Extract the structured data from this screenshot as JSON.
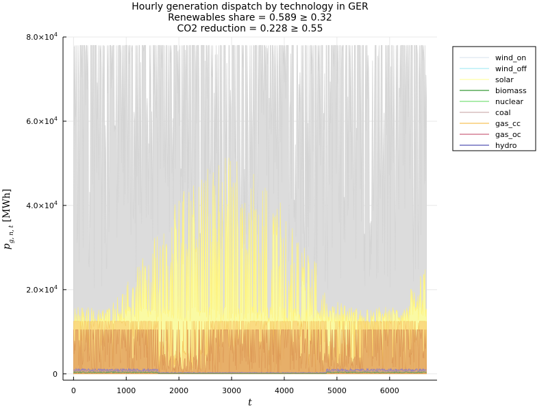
{
  "chart_data": {
    "type": "area",
    "title_lines": [
      "Hourly generation dispatch by technology in GER",
      "Renewables share = 0.589 ≥ 0.32",
      "CO2 reduction = 0.228 ≥ 0.55"
    ],
    "xlabel": "t",
    "ylabel": "p_{g,n,t} [MWh]",
    "xlim": [
      -200,
      6900
    ],
    "ylim": [
      -1500,
      80000
    ],
    "x_ticks": [
      0,
      1000,
      2000,
      3000,
      4000,
      5000,
      6000
    ],
    "x_tick_labels": [
      "0",
      "1000",
      "2000",
      "3000",
      "4000",
      "5000",
      "6000"
    ],
    "y_ticks": [
      0,
      20000,
      40000,
      60000,
      80000
    ],
    "y_tick_labels": [
      {
        "base": "0",
        "exp": ""
      },
      {
        "base": "2.0×10",
        "exp": "4"
      },
      {
        "base": "4.0×10",
        "exp": "4"
      },
      {
        "base": "6.0×10",
        "exp": "4"
      },
      {
        "base": "8.0×10",
        "exp": "4"
      }
    ],
    "grid": true,
    "legend_position": "top-right outside",
    "series": [
      {
        "name": "wind_on",
        "color": "#d9e4ef",
        "approx_range": [
          0,
          78000
        ]
      },
      {
        "name": "wind_off",
        "color": "#9fe9f3",
        "approx_range": [
          0,
          78000
        ]
      },
      {
        "name": "solar",
        "color": "#ffff99",
        "approx_range": [
          0,
          54000
        ]
      },
      {
        "name": "biomass",
        "color": "#1a8a1a",
        "approx_range": [
          0,
          1200
        ]
      },
      {
        "name": "nuclear",
        "color": "#66dd66",
        "approx_range": [
          0,
          1200
        ]
      },
      {
        "name": "coal",
        "color": "#c8a6a6",
        "approx_range": [
          0,
          1200
        ]
      },
      {
        "name": "gas_cc",
        "color": "#f5b942",
        "approx_range": [
          0,
          12500
        ]
      },
      {
        "name": "gas_oc",
        "color": "#c44e6e",
        "approx_range": [
          0,
          10500
        ]
      },
      {
        "name": "hydro",
        "color": "#3a3aa8",
        "approx_range": [
          0,
          1200
        ]
      }
    ]
  }
}
